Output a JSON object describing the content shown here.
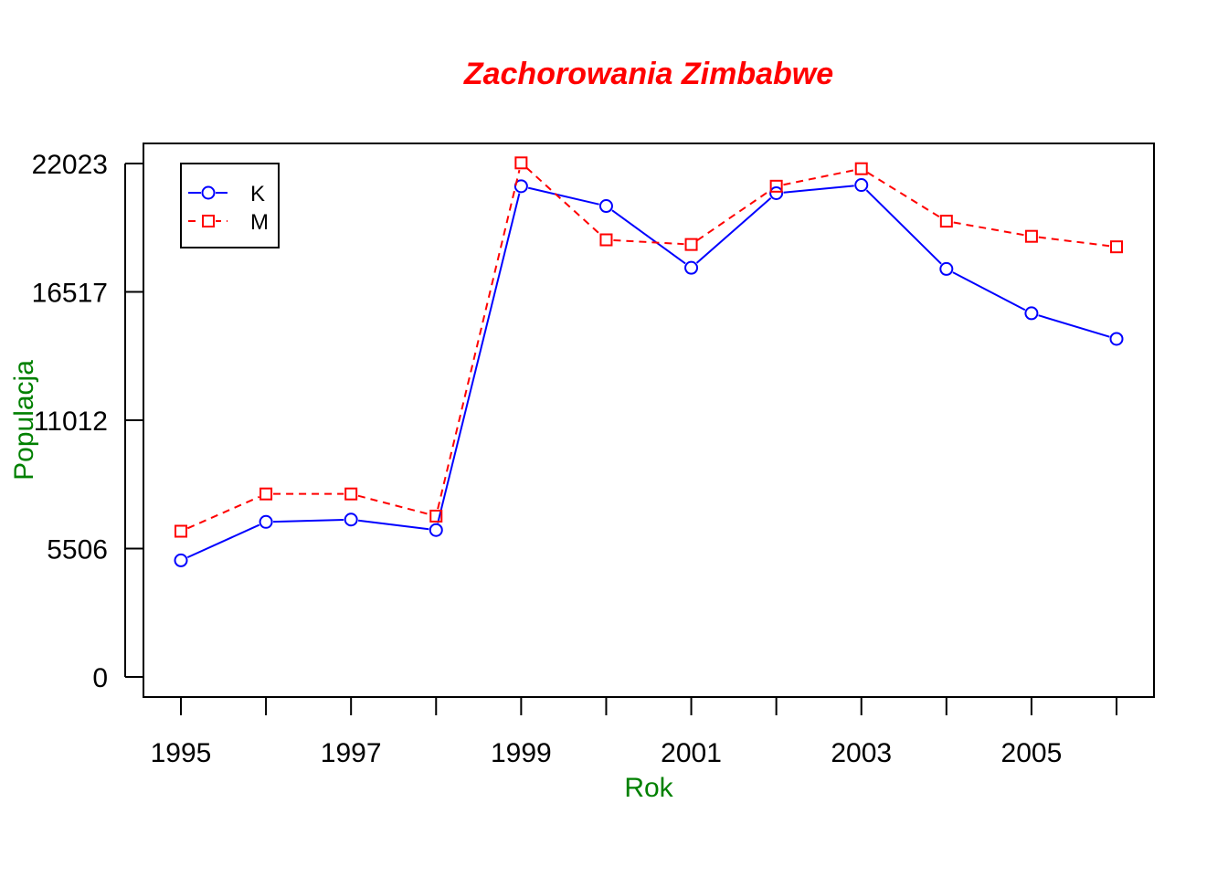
{
  "colors": {
    "title": "#ff0000",
    "axis_titles": "#008000",
    "series_k": "#0000ff",
    "series_m": "#ff0000"
  },
  "chart_data": {
    "type": "line",
    "title": "Zachorowania Zimbabwe",
    "xlabel": "Rok",
    "ylabel": "Populacja",
    "x": [
      1995,
      1996,
      1997,
      1998,
      1999,
      2000,
      2001,
      2002,
      2003,
      2004,
      2005,
      2006
    ],
    "x_ticks": [
      "1995",
      "1997",
      "1999",
      "2001",
      "2003",
      "2005"
    ],
    "y_ticks": [
      "0",
      "5506",
      "11012",
      "16517",
      "22023"
    ],
    "ylim": [
      0,
      22023
    ],
    "series": [
      {
        "name": "K",
        "line": "solid",
        "marker": "circle",
        "values": [
          5000,
          6650,
          6750,
          6300,
          21050,
          20200,
          17550,
          20750,
          21100,
          17500,
          15600,
          14500
        ]
      },
      {
        "name": "M",
        "line": "dashed",
        "marker": "square",
        "values": [
          6250,
          7850,
          7850,
          6900,
          22050,
          18750,
          18550,
          21050,
          21800,
          19550,
          18900,
          18450
        ]
      }
    ],
    "legend_position": "top-left",
    "grid": false
  }
}
